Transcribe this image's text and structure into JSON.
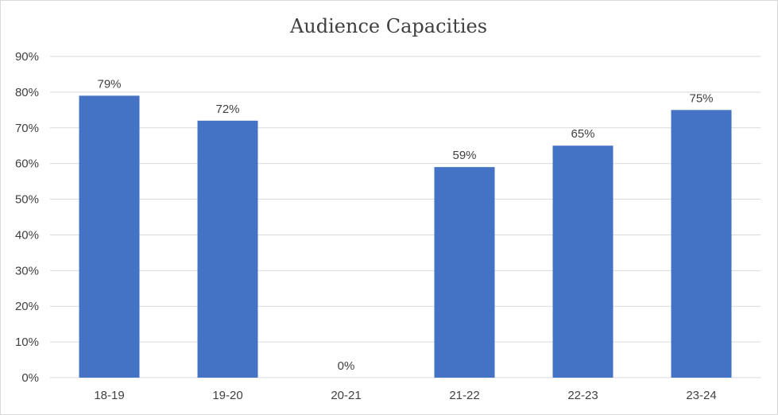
{
  "chart_data": {
    "type": "bar",
    "title": "Audience Capacities",
    "xlabel": "",
    "ylabel": "",
    "categories": [
      "18-19",
      "19-20",
      "20-21",
      "21-22",
      "22-23",
      "23-24"
    ],
    "values": [
      79,
      72,
      0,
      59,
      65,
      75
    ],
    "data_labels": [
      "79%",
      "72%",
      "0%",
      "59%",
      "65%",
      "75%"
    ],
    "ylim": [
      0,
      90
    ],
    "yticks": [
      0,
      10,
      20,
      30,
      40,
      50,
      60,
      70,
      80,
      90
    ],
    "ytick_labels": [
      "0%",
      "10%",
      "20%",
      "30%",
      "40%",
      "50%",
      "60%",
      "70%",
      "80%",
      "90%"
    ],
    "grid": true,
    "legend": "none",
    "colors": {
      "bar": "#4472c4",
      "grid": "#d9d9d9",
      "text": "#404040",
      "border": "#d9d9d9"
    }
  }
}
